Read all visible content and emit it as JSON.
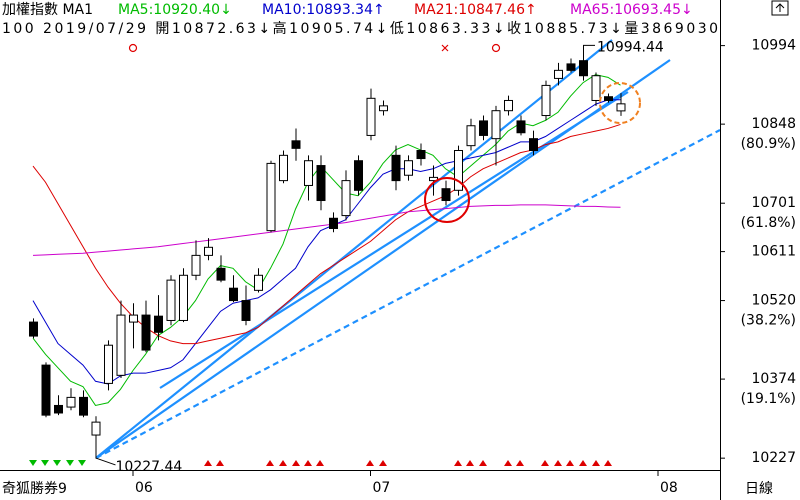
{
  "chart_data": {
    "type": "candlestick",
    "title": "加權指數 MA1",
    "info": "100 2019/07/29 開10872.63↓高10905.74↓低10863.33↓收10885.73↓量3869030",
    "footer_left": "奇狐勝券9",
    "footer_right": "日線",
    "categories": [
      null,
      null,
      null,
      null,
      null,
      null,
      null,
      null,
      "06",
      null,
      null,
      null,
      null,
      null,
      null,
      null,
      null,
      null,
      null,
      null,
      null,
      null,
      null,
      null,
      null,
      null,
      null,
      "07",
      null,
      null,
      null,
      null,
      null,
      null,
      null,
      null,
      null,
      null,
      null,
      null,
      null,
      null,
      null,
      null,
      null,
      null,
      null,
      null,
      null,
      null,
      "08"
    ],
    "candles": {
      "up_color": "#ffffff",
      "down_color": "#000000",
      "open": [
        10480,
        10400,
        10325,
        10322,
        10340,
        10270,
        10366,
        10381,
        10480,
        10493,
        10491,
        10483,
        10483,
        10567,
        10604,
        10580,
        10543,
        10520,
        10539,
        10650,
        10743,
        10817,
        10734,
        10771,
        10673,
        10678,
        10780,
        10827,
        10873,
        10790,
        10753,
        10799,
        10743,
        10728,
        10725,
        10808,
        10854,
        10821,
        10873,
        10854,
        10821,
        10864,
        10933,
        10960,
        10966,
        10892,
        10899,
        10872.63,
        null,
        null,
        null
      ],
      "high": [
        10487,
        10405,
        10344,
        10357,
        10353,
        10305,
        10446,
        10520,
        10515,
        10520,
        10530,
        10567,
        10580,
        10632,
        10636,
        10604,
        10567,
        10548,
        10580,
        10780,
        10799,
        10840,
        10790,
        10790,
        10684,
        10762,
        10790,
        10914,
        10892,
        10808,
        10790,
        10812,
        10771,
        10743,
        10808,
        10858,
        10864,
        10882,
        10901,
        10864,
        10836,
        10929,
        10962,
        10970,
        10994.44,
        10944,
        10905,
        10905.74,
        null,
        null,
        null
      ],
      "low": [
        10450,
        10303,
        10307,
        10316,
        10303,
        10227.44,
        10353,
        10376,
        10431,
        10424,
        10446,
        10474,
        10480,
        10558,
        10595,
        10554,
        10517,
        10474,
        10535,
        10647,
        10738,
        10780,
        10706,
        10688,
        10647,
        10669,
        10715,
        10818,
        10864,
        10725,
        10743,
        10771,
        10715,
        10697,
        10715,
        10799,
        10818,
        10771,
        10864,
        10827,
        10790,
        10855,
        10920,
        10944,
        10929,
        10882,
        10888,
        10863.33,
        null,
        null,
        null
      ],
      "close": [
        10454,
        10307,
        10311,
        10340,
        10307,
        10294,
        10437,
        10493,
        10493,
        10428,
        10461,
        10558,
        10567,
        10604,
        10619,
        10558,
        10520,
        10483,
        10567,
        10775,
        10790,
        10803,
        10780,
        10706,
        10654,
        10743,
        10725,
        10896,
        10882,
        10743,
        10780,
        10784,
        10749,
        10706,
        10799,
        10845,
        10827,
        10873,
        10892,
        10832,
        10799,
        10920,
        10948,
        10948,
        10938,
        10938,
        10892,
        10885.73,
        null,
        null,
        null
      ]
    },
    "series": [
      {
        "name": "MA5:10920.40↓",
        "color": "#00bb00",
        "values": [
          10450,
          10420,
          10395,
          10370,
          10360,
          10325,
          10330,
          10355,
          10390,
          10420,
          10455,
          10470,
          10490,
          10520,
          10560,
          10585,
          10580,
          10555,
          10540,
          10580,
          10625,
          10690,
          10740,
          10770,
          10745,
          10720,
          10715,
          10740,
          10775,
          10800,
          10810,
          10800,
          10790,
          10765,
          10750,
          10770,
          10790,
          10810,
          10835,
          10850,
          10845,
          10855,
          10870,
          10900,
          10925,
          10940,
          10935,
          10920.4,
          null,
          null,
          null
        ]
      },
      {
        "name": "MA10:10893.34↑",
        "color": "#0000cc",
        "values": [
          10520,
          10480,
          10440,
          10420,
          10400,
          10370,
          10365,
          10380,
          10385,
          10385,
          10390,
          10395,
          10410,
          10440,
          10470,
          10500,
          10515,
          10520,
          10525,
          10540,
          10560,
          10580,
          10620,
          10650,
          10660,
          10670,
          10700,
          10730,
          10755,
          10765,
          10765,
          10760,
          10765,
          10775,
          10780,
          10785,
          10790,
          10795,
          10805,
          10815,
          10815,
          10825,
          10840,
          10855,
          10870,
          10885,
          10893,
          10893.34,
          null,
          null,
          null
        ]
      },
      {
        "name": "MA21:10847.46↑",
        "color": "#dd0000",
        "values": [
          10770,
          10740,
          10700,
          10660,
          10620,
          10580,
          10545,
          10515,
          10490,
          10470,
          10455,
          10445,
          10440,
          10440,
          10445,
          10450,
          10455,
          10460,
          10470,
          10490,
          10510,
          10530,
          10550,
          10570,
          10585,
          10600,
          10615,
          10630,
          10650,
          10670,
          10685,
          10695,
          10705,
          10715,
          10730,
          10750,
          10765,
          10775,
          10785,
          10795,
          10800,
          10810,
          10815,
          10825,
          10830,
          10835,
          10840,
          10847.46,
          null,
          null,
          null
        ]
      },
      {
        "name": "MA65:10693.45↓",
        "color": "#cc00cc",
        "values": [
          10604,
          10605,
          10606,
          10607,
          10608,
          10610,
          10612,
          10614,
          10616,
          10618,
          10620,
          10623,
          10626,
          10629,
          10632,
          10635,
          10638,
          10641,
          10644,
          10647,
          10650,
          10653,
          10656,
          10659,
          10662,
          10665,
          10669,
          10673,
          10677,
          10681,
          10685,
          10687,
          10689,
          10691,
          10693,
          10695,
          10696,
          10697,
          10697,
          10698,
          10698,
          10698,
          10697,
          10696,
          10695,
          10695,
          10694,
          10693.45,
          null,
          null,
          null
        ]
      }
    ],
    "ylim": [
      10205,
      11010
    ],
    "yticks": [
      10227,
      10374,
      10520,
      10611,
      10701,
      10848,
      10994
    ],
    "fib_levels": [
      {
        "value": 10374,
        "label": "(19.1%)"
      },
      {
        "value": 10520,
        "label": "(38.2%)"
      },
      {
        "value": 10701,
        "label": "(61.8%)"
      },
      {
        "value": 10848,
        "label": "(80.9%)"
      }
    ]
  }
}
